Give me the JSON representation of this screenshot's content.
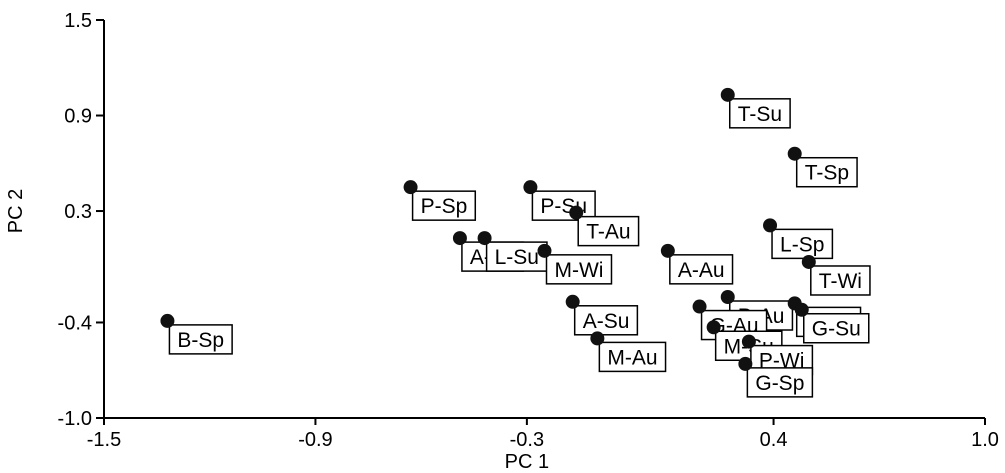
{
  "chart_data": {
    "type": "scatter",
    "title": "",
    "xlabel": "PC 1",
    "ylabel": "PC 2",
    "xlim": [
      -1.5,
      1.0
    ],
    "ylim": [
      -1.0,
      1.5
    ],
    "xticks": [
      "-1.5",
      "-0.9",
      "-0.3",
      "0.4",
      "1.0"
    ],
    "yticks": [
      "1.5",
      "0.9",
      "0.3",
      "-0.4",
      "-1.0"
    ],
    "grid": false,
    "points": [
      {
        "label": "T-Su",
        "x": 0.27,
        "y": 1.03
      },
      {
        "label": "T-Sp",
        "x": 0.46,
        "y": 0.66
      },
      {
        "label": "P-Sp",
        "x": -0.63,
        "y": 0.45
      },
      {
        "label": "P-Su",
        "x": -0.29,
        "y": 0.45
      },
      {
        "label": "T-Au",
        "x": -0.16,
        "y": 0.29
      },
      {
        "label": "L-Sp",
        "x": 0.39,
        "y": 0.21
      },
      {
        "label": "A-Wi",
        "x": -0.49,
        "y": 0.13
      },
      {
        "label": "L-Su",
        "x": -0.42,
        "y": 0.13
      },
      {
        "label": "M-Wi",
        "x": -0.25,
        "y": 0.05
      },
      {
        "label": "A-Au",
        "x": 0.1,
        "y": 0.05
      },
      {
        "label": "T-Wi",
        "x": 0.5,
        "y": -0.02
      },
      {
        "label": "P-Au",
        "x": 0.27,
        "y": -0.24
      },
      {
        "label": "G-Au",
        "x": 0.19,
        "y": -0.3
      },
      {
        "label": "G-Wi",
        "x": 0.46,
        "y": -0.28
      },
      {
        "label": "G-Su",
        "x": 0.48,
        "y": -0.32
      },
      {
        "label": "A-Su",
        "x": -0.17,
        "y": -0.27
      },
      {
        "label": "M-Su",
        "x": 0.23,
        "y": -0.43
      },
      {
        "label": "P-Wi",
        "x": 0.33,
        "y": -0.52
      },
      {
        "label": "M-Au",
        "x": -0.1,
        "y": -0.5
      },
      {
        "label": "G-Sp",
        "x": 0.32,
        "y": -0.66
      },
      {
        "label": "B-Sp",
        "x": -1.32,
        "y": -0.39
      }
    ],
    "marker_color": "#111111"
  }
}
